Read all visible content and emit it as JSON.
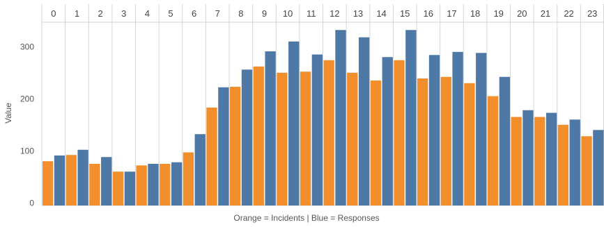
{
  "chart_data": {
    "type": "bar",
    "categories": [
      "0",
      "1",
      "2",
      "3",
      "4",
      "5",
      "6",
      "7",
      "8",
      "9",
      "10",
      "11",
      "12",
      "13",
      "14",
      "15",
      "16",
      "17",
      "18",
      "19",
      "20",
      "21",
      "22",
      "23"
    ],
    "series": [
      {
        "name": "Incidents",
        "color": "#f28e2b",
        "values": [
          80,
          92,
          75,
          60,
          72,
          75,
          97,
          183,
          223,
          262,
          250,
          252,
          274,
          250,
          235,
          274,
          239,
          242,
          230,
          205,
          165,
          165,
          150,
          128
        ]
      },
      {
        "name": "Responses",
        "color": "#4e79a7",
        "values": [
          91,
          102,
          88,
          60,
          75,
          78,
          132,
          222,
          256,
          291,
          310,
          285,
          332,
          318,
          280,
          332,
          284,
          290,
          288,
          242,
          178,
          173,
          160,
          140
        ]
      }
    ],
    "ylabel": "Value",
    "yticks": [
      0,
      100,
      200,
      300
    ],
    "ylim": [
      -5,
      347
    ],
    "caption": "Orange = Incidents | Blue = Responses",
    "grid": "vertical separators between categories"
  }
}
